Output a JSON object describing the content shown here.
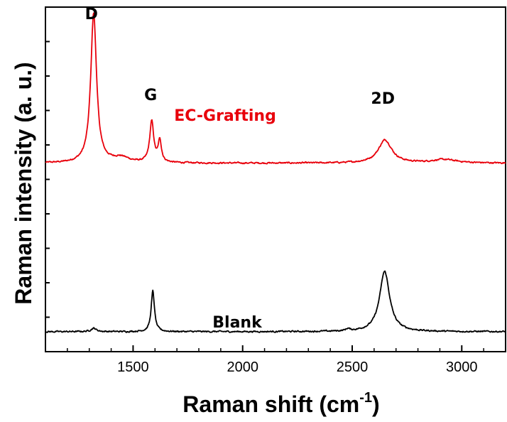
{
  "chart_data": {
    "type": "line",
    "xlabel": "Raman shift (cm",
    "xlabel_superscript": "-1",
    "xlabel_suffix": ")",
    "ylabel": "Raman intensity (a. u.)",
    "xlim": [
      1100,
      3200
    ],
    "ylim": [
      0,
      1
    ],
    "x_ticks": [
      1500,
      2000,
      2500,
      3000
    ],
    "y_ticks_labeled": false,
    "grid": false,
    "legend": "none",
    "series": [
      {
        "color": "#e8000b",
        "label_text": "EC-Grafting",
        "baseline": 0.547,
        "noise": 0.004,
        "peaks": [
          {
            "center": 1320,
            "height": 0.434,
            "width": 32
          },
          {
            "center": 1585,
            "height": 0.118,
            "width": 22
          },
          {
            "center": 1622,
            "height": 0.062,
            "width": 18
          },
          {
            "center": 1445,
            "height": 0.015,
            "width": 90
          },
          {
            "center": 2650,
            "height": 0.067,
            "width": 75
          },
          {
            "center": 2920,
            "height": 0.01,
            "width": 140
          }
        ]
      },
      {
        "color": "#000000",
        "label_text": "Blank",
        "baseline": 0.058,
        "noise": 0.004,
        "peaks": [
          {
            "center": 1590,
            "height": 0.118,
            "width": 18
          },
          {
            "center": 2648,
            "height": 0.175,
            "width": 55
          },
          {
            "center": 1320,
            "height": 0.01,
            "width": 30
          },
          {
            "center": 2480,
            "height": 0.006,
            "width": 20
          }
        ]
      }
    ],
    "annotations": [
      {
        "text": "D",
        "x": 1310,
        "y": 0.965,
        "color": "#000000"
      },
      {
        "text": "G",
        "x": 1580,
        "y": 0.73,
        "color": "#000000"
      },
      {
        "text": "EC-Grafting",
        "x": 1920,
        "y": 0.67,
        "color": "#e8000b"
      },
      {
        "text": "2D",
        "x": 2640,
        "y": 0.72,
        "color": "#000000"
      },
      {
        "text": "Blank",
        "x": 1975,
        "y": 0.07,
        "color": "#000000"
      }
    ]
  }
}
